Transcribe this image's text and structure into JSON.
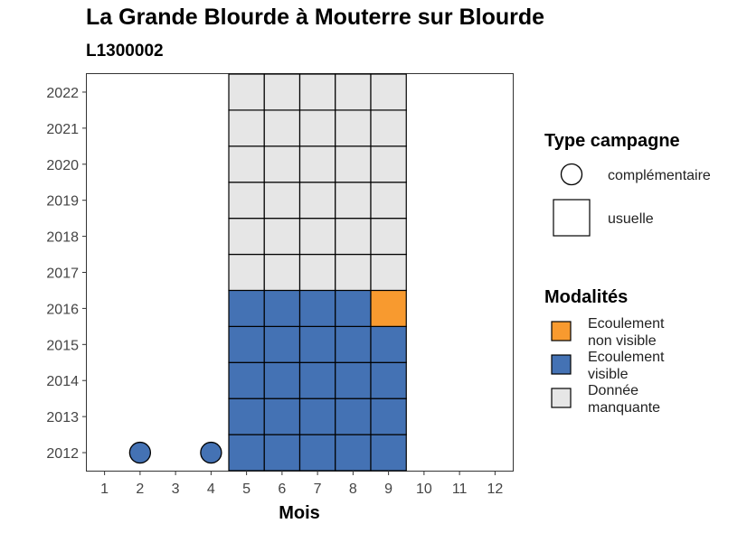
{
  "chart_data": {
    "type": "heatmap",
    "title": "La Grande Blourde à Mouterre sur Blourde",
    "subtitle": "L1300002",
    "xlabel": "Mois",
    "ylabel": "",
    "x_ticks": [
      1,
      2,
      3,
      4,
      5,
      6,
      7,
      8,
      9,
      10,
      11,
      12
    ],
    "y_ticks": [
      2012,
      2013,
      2014,
      2015,
      2016,
      2017,
      2018,
      2019,
      2020,
      2021,
      2022
    ],
    "xlim": [
      0.5,
      12.5
    ],
    "ylim": [
      2011.5,
      2022.5
    ],
    "grid": false,
    "colors": {
      "Ecoulement non visible": "#f89a2f",
      "Ecoulement visible": "#4472b4",
      "Donnée manquante": "#e6e6e6"
    },
    "cells": [
      {
        "year": 2012,
        "month": 5,
        "campagne": "usuelle",
        "modalite": "Ecoulement visible"
      },
      {
        "year": 2012,
        "month": 6,
        "campagne": "usuelle",
        "modalite": "Ecoulement visible"
      },
      {
        "year": 2012,
        "month": 7,
        "campagne": "usuelle",
        "modalite": "Ecoulement visible"
      },
      {
        "year": 2012,
        "month": 8,
        "campagne": "usuelle",
        "modalite": "Ecoulement visible"
      },
      {
        "year": 2012,
        "month": 9,
        "campagne": "usuelle",
        "modalite": "Ecoulement visible"
      },
      {
        "year": 2013,
        "month": 5,
        "campagne": "usuelle",
        "modalite": "Ecoulement visible"
      },
      {
        "year": 2013,
        "month": 6,
        "campagne": "usuelle",
        "modalite": "Ecoulement visible"
      },
      {
        "year": 2013,
        "month": 7,
        "campagne": "usuelle",
        "modalite": "Ecoulement visible"
      },
      {
        "year": 2013,
        "month": 8,
        "campagne": "usuelle",
        "modalite": "Ecoulement visible"
      },
      {
        "year": 2013,
        "month": 9,
        "campagne": "usuelle",
        "modalite": "Ecoulement visible"
      },
      {
        "year": 2014,
        "month": 5,
        "campagne": "usuelle",
        "modalite": "Ecoulement visible"
      },
      {
        "year": 2014,
        "month": 6,
        "campagne": "usuelle",
        "modalite": "Ecoulement visible"
      },
      {
        "year": 2014,
        "month": 7,
        "campagne": "usuelle",
        "modalite": "Ecoulement visible"
      },
      {
        "year": 2014,
        "month": 8,
        "campagne": "usuelle",
        "modalite": "Ecoulement visible"
      },
      {
        "year": 2014,
        "month": 9,
        "campagne": "usuelle",
        "modalite": "Ecoulement visible"
      },
      {
        "year": 2015,
        "month": 5,
        "campagne": "usuelle",
        "modalite": "Ecoulement visible"
      },
      {
        "year": 2015,
        "month": 6,
        "campagne": "usuelle",
        "modalite": "Ecoulement visible"
      },
      {
        "year": 2015,
        "month": 7,
        "campagne": "usuelle",
        "modalite": "Ecoulement visible"
      },
      {
        "year": 2015,
        "month": 8,
        "campagne": "usuelle",
        "modalite": "Ecoulement visible"
      },
      {
        "year": 2015,
        "month": 9,
        "campagne": "usuelle",
        "modalite": "Ecoulement visible"
      },
      {
        "year": 2016,
        "month": 5,
        "campagne": "usuelle",
        "modalite": "Ecoulement visible"
      },
      {
        "year": 2016,
        "month": 6,
        "campagne": "usuelle",
        "modalite": "Ecoulement visible"
      },
      {
        "year": 2016,
        "month": 7,
        "campagne": "usuelle",
        "modalite": "Ecoulement visible"
      },
      {
        "year": 2016,
        "month": 8,
        "campagne": "usuelle",
        "modalite": "Ecoulement visible"
      },
      {
        "year": 2016,
        "month": 9,
        "campagne": "usuelle",
        "modalite": "Ecoulement non visible"
      },
      {
        "year": 2017,
        "month": 5,
        "campagne": "usuelle",
        "modalite": "Donnée manquante"
      },
      {
        "year": 2017,
        "month": 6,
        "campagne": "usuelle",
        "modalite": "Donnée manquante"
      },
      {
        "year": 2017,
        "month": 7,
        "campagne": "usuelle",
        "modalite": "Donnée manquante"
      },
      {
        "year": 2017,
        "month": 8,
        "campagne": "usuelle",
        "modalite": "Donnée manquante"
      },
      {
        "year": 2017,
        "month": 9,
        "campagne": "usuelle",
        "modalite": "Donnée manquante"
      },
      {
        "year": 2018,
        "month": 5,
        "campagne": "usuelle",
        "modalite": "Donnée manquante"
      },
      {
        "year": 2018,
        "month": 6,
        "campagne": "usuelle",
        "modalite": "Donnée manquante"
      },
      {
        "year": 2018,
        "month": 7,
        "campagne": "usuelle",
        "modalite": "Donnée manquante"
      },
      {
        "year": 2018,
        "month": 8,
        "campagne": "usuelle",
        "modalite": "Donnée manquante"
      },
      {
        "year": 2018,
        "month": 9,
        "campagne": "usuelle",
        "modalite": "Donnée manquante"
      },
      {
        "year": 2019,
        "month": 5,
        "campagne": "usuelle",
        "modalite": "Donnée manquante"
      },
      {
        "year": 2019,
        "month": 6,
        "campagne": "usuelle",
        "modalite": "Donnée manquante"
      },
      {
        "year": 2019,
        "month": 7,
        "campagne": "usuelle",
        "modalite": "Donnée manquante"
      },
      {
        "year": 2019,
        "month": 8,
        "campagne": "usuelle",
        "modalite": "Donnée manquante"
      },
      {
        "year": 2019,
        "month": 9,
        "campagne": "usuelle",
        "modalite": "Donnée manquante"
      },
      {
        "year": 2020,
        "month": 5,
        "campagne": "usuelle",
        "modalite": "Donnée manquante"
      },
      {
        "year": 2020,
        "month": 6,
        "campagne": "usuelle",
        "modalite": "Donnée manquante"
      },
      {
        "year": 2020,
        "month": 7,
        "campagne": "usuelle",
        "modalite": "Donnée manquante"
      },
      {
        "year": 2020,
        "month": 8,
        "campagne": "usuelle",
        "modalite": "Donnée manquante"
      },
      {
        "year": 2020,
        "month": 9,
        "campagne": "usuelle",
        "modalite": "Donnée manquante"
      },
      {
        "year": 2021,
        "month": 5,
        "campagne": "usuelle",
        "modalite": "Donnée manquante"
      },
      {
        "year": 2021,
        "month": 6,
        "campagne": "usuelle",
        "modalite": "Donnée manquante"
      },
      {
        "year": 2021,
        "month": 7,
        "campagne": "usuelle",
        "modalite": "Donnée manquante"
      },
      {
        "year": 2021,
        "month": 8,
        "campagne": "usuelle",
        "modalite": "Donnée manquante"
      },
      {
        "year": 2021,
        "month": 9,
        "campagne": "usuelle",
        "modalite": "Donnée manquante"
      },
      {
        "year": 2022,
        "month": 5,
        "campagne": "usuelle",
        "modalite": "Donnée manquante"
      },
      {
        "year": 2022,
        "month": 6,
        "campagne": "usuelle",
        "modalite": "Donnée manquante"
      },
      {
        "year": 2022,
        "month": 7,
        "campagne": "usuelle",
        "modalite": "Donnée manquante"
      },
      {
        "year": 2022,
        "month": 8,
        "campagne": "usuelle",
        "modalite": "Donnée manquante"
      },
      {
        "year": 2022,
        "month": 9,
        "campagne": "usuelle",
        "modalite": "Donnée manquante"
      },
      {
        "year": 2012,
        "month": 2,
        "campagne": "complémentaire",
        "modalite": "Ecoulement visible"
      },
      {
        "year": 2012,
        "month": 4,
        "campagne": "complémentaire",
        "modalite": "Ecoulement visible"
      }
    ],
    "legend": {
      "placement": "right",
      "shape_title": "Type campagne",
      "shape_items": [
        {
          "label": "complémentaire",
          "shape": "circle"
        },
        {
          "label": "usuelle",
          "shape": "square"
        }
      ],
      "fill_title": "Modalités",
      "fill_items": [
        {
          "lines": [
            "Ecoulement",
            "non visible"
          ],
          "key": "Ecoulement non visible"
        },
        {
          "lines": [
            "Ecoulement",
            "visible"
          ],
          "key": "Ecoulement visible"
        },
        {
          "lines": [
            "Donnée",
            "manquante"
          ],
          "key": "Donnée manquante"
        }
      ]
    }
  }
}
